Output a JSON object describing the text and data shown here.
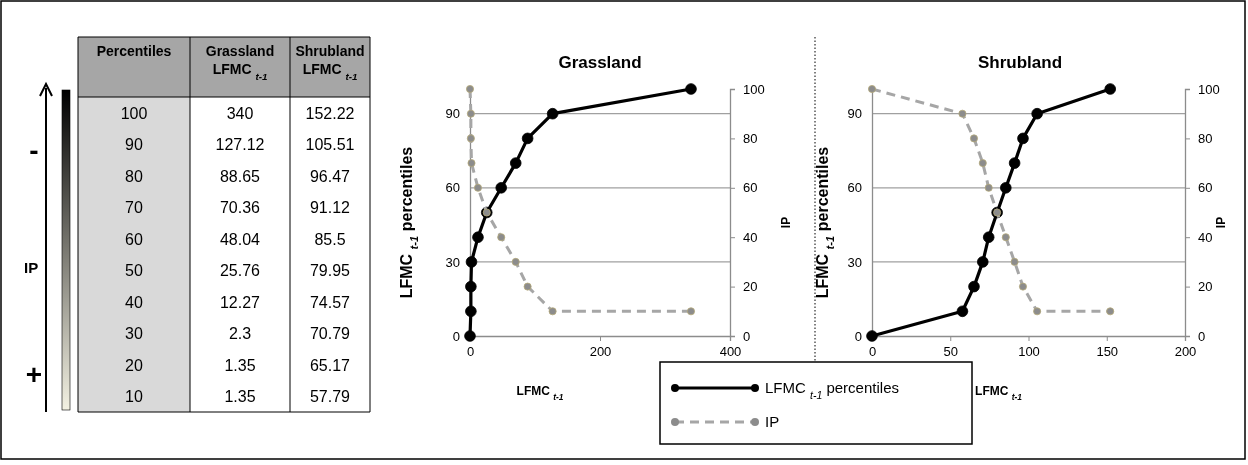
{
  "chart_data": [
    {
      "type": "heatmap",
      "ylabel": "Percentiles",
      "annotations": [
        "-",
        "IP",
        "+"
      ],
      "data_labels": true,
      "categories": [
        "Grassland LFMC $_{t-1}$",
        "Shrubland LFMC $_{t-1}$"
      ],
      "y_categories": [
        "100",
        "90",
        "80",
        "70",
        "60",
        "50",
        "40",
        "30",
        "20",
        "10"
      ],
      "cells": [
        [
          340,
          152.22
        ],
        [
          127.12,
          105.51
        ],
        [
          88.65,
          96.47
        ],
        [
          70.36,
          91.12
        ],
        [
          48.04,
          85.5
        ],
        [
          25.76,
          79.95
        ],
        [
          12.27,
          74.57
        ],
        [
          2.3,
          70.79
        ],
        [
          1.35,
          65.17
        ],
        [
          1.35,
          57.79
        ]
      ]
    },
    {
      "type": "line",
      "title": "Grassland",
      "xlabel": "LFMC $_{t-1}$",
      "ylabel": "LFMC $_{t-1}$ percentiles",
      "y2label": "IP",
      "xlim": [
        0,
        400
      ],
      "xticks": [
        0,
        200,
        400
      ],
      "ylim": [
        0,
        100
      ],
      "yticks": [
        0,
        30,
        60,
        90
      ],
      "y2lim": [
        0,
        100
      ],
      "y2ticks": [
        0,
        20,
        40,
        60,
        80,
        100
      ],
      "grid": "y",
      "legend": "bottom",
      "marker": "circle",
      "series": [
        {
          "name": "LFMC $_{t-1}$ percentiles",
          "color": "#000000",
          "line_style": "solid",
          "x": [
            0,
            1.35,
            1.35,
            2.3,
            12.27,
            25.76,
            48.04,
            70.36,
            88.65,
            127.12,
            340
          ],
          "values": [
            0,
            10,
            20,
            30,
            40,
            50,
            60,
            70,
            80,
            90,
            100
          ]
        },
        {
          "name": "IP",
          "color": "#a6a6a6",
          "line_style": "dashed",
          "axis": "y2",
          "x": [
            0,
            1.35,
            1.35,
            2.3,
            12.27,
            25.76,
            48.04,
            70.36,
            88.65,
            127.12,
            340
          ],
          "values": [
            100,
            90,
            80,
            70,
            60,
            50,
            40,
            30,
            20,
            10,
            10
          ]
        }
      ]
    },
    {
      "type": "line",
      "title": "Shrubland",
      "xlabel": "LFMC $_{t-1}$",
      "ylabel": "LFMC $_{t-1}$ percentiles",
      "y2label": "IP",
      "xlim": [
        0,
        200
      ],
      "xticks": [
        0,
        50,
        100,
        150,
        200
      ],
      "ylim": [
        0,
        100
      ],
      "yticks": [
        0,
        30,
        60,
        90
      ],
      "y2lim": [
        0,
        100
      ],
      "y2ticks": [
        0,
        20,
        40,
        60,
        80,
        100
      ],
      "grid": "y",
      "marker": "circle",
      "series": [
        {
          "color": "#000000",
          "line_style": "solid",
          "x": [
            0,
            57.79,
            65.17,
            70.79,
            74.57,
            79.95,
            85.5,
            91.12,
            96.47,
            105.51,
            152.22
          ],
          "values": [
            0,
            10,
            20,
            30,
            40,
            50,
            60,
            70,
            80,
            90,
            100
          ]
        },
        {
          "color": "#a6a6a6",
          "line_style": "dashed",
          "axis": "y2",
          "x": [
            0,
            57.79,
            65.17,
            70.79,
            74.57,
            79.95,
            85.5,
            91.12,
            96.47,
            105.51,
            152.22
          ],
          "values": [
            100,
            90,
            80,
            70,
            60,
            50,
            40,
            30,
            20,
            10,
            10
          ]
        }
      ]
    }
  ]
}
